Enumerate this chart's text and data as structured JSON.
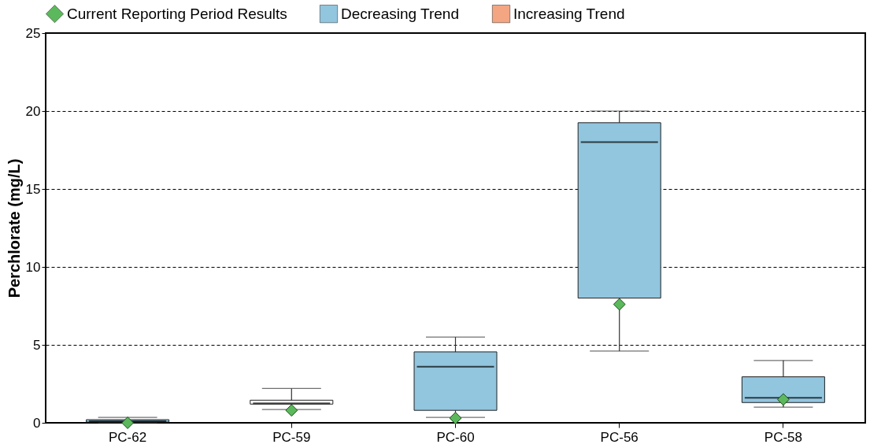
{
  "chart_data": {
    "type": "box",
    "ylabel": "Perchlorate (mg/L)",
    "categories": [
      "PC-62",
      "PC-59",
      "PC-60",
      "PC-56",
      "PC-58"
    ],
    "series": [
      {
        "name": "Current Reporting Period Results",
        "type": "scatter",
        "color": "#5cb85c",
        "marker": "diamond",
        "values": [
          0.0,
          0.8,
          0.3,
          7.6,
          1.5
        ]
      },
      {
        "name": "Decreasing Trend",
        "type": "box",
        "color": "#92c5de",
        "boxes": [
          {
            "low": 0.0,
            "q1": 0.05,
            "median": 0.1,
            "q3": 0.2,
            "high": 0.35
          },
          null,
          {
            "low": 0.35,
            "q1": 0.8,
            "median": 3.6,
            "q3": 4.55,
            "high": 5.5
          },
          {
            "low": 4.6,
            "q1": 8.0,
            "median": 18.0,
            "q3": 19.25,
            "high": 20.0
          },
          {
            "low": 1.0,
            "q1": 1.3,
            "median": 1.6,
            "q3": 2.95,
            "high": 4.0
          }
        ]
      },
      {
        "name": "Increasing Trend",
        "type": "box",
        "color": "#f4a582",
        "boxes": [
          null,
          null,
          null,
          null,
          null
        ]
      },
      {
        "type": "box",
        "color": "#ffffff",
        "boxes": [
          null,
          {
            "low": 0.85,
            "q1": 1.2,
            "median": 1.25,
            "q3": 1.45,
            "high": 2.2
          },
          null,
          null,
          null
        ]
      }
    ],
    "ylim": [
      0,
      25
    ],
    "yticks": [
      0,
      5,
      10,
      15,
      20,
      25
    ],
    "grid": "y",
    "legend": "top"
  }
}
